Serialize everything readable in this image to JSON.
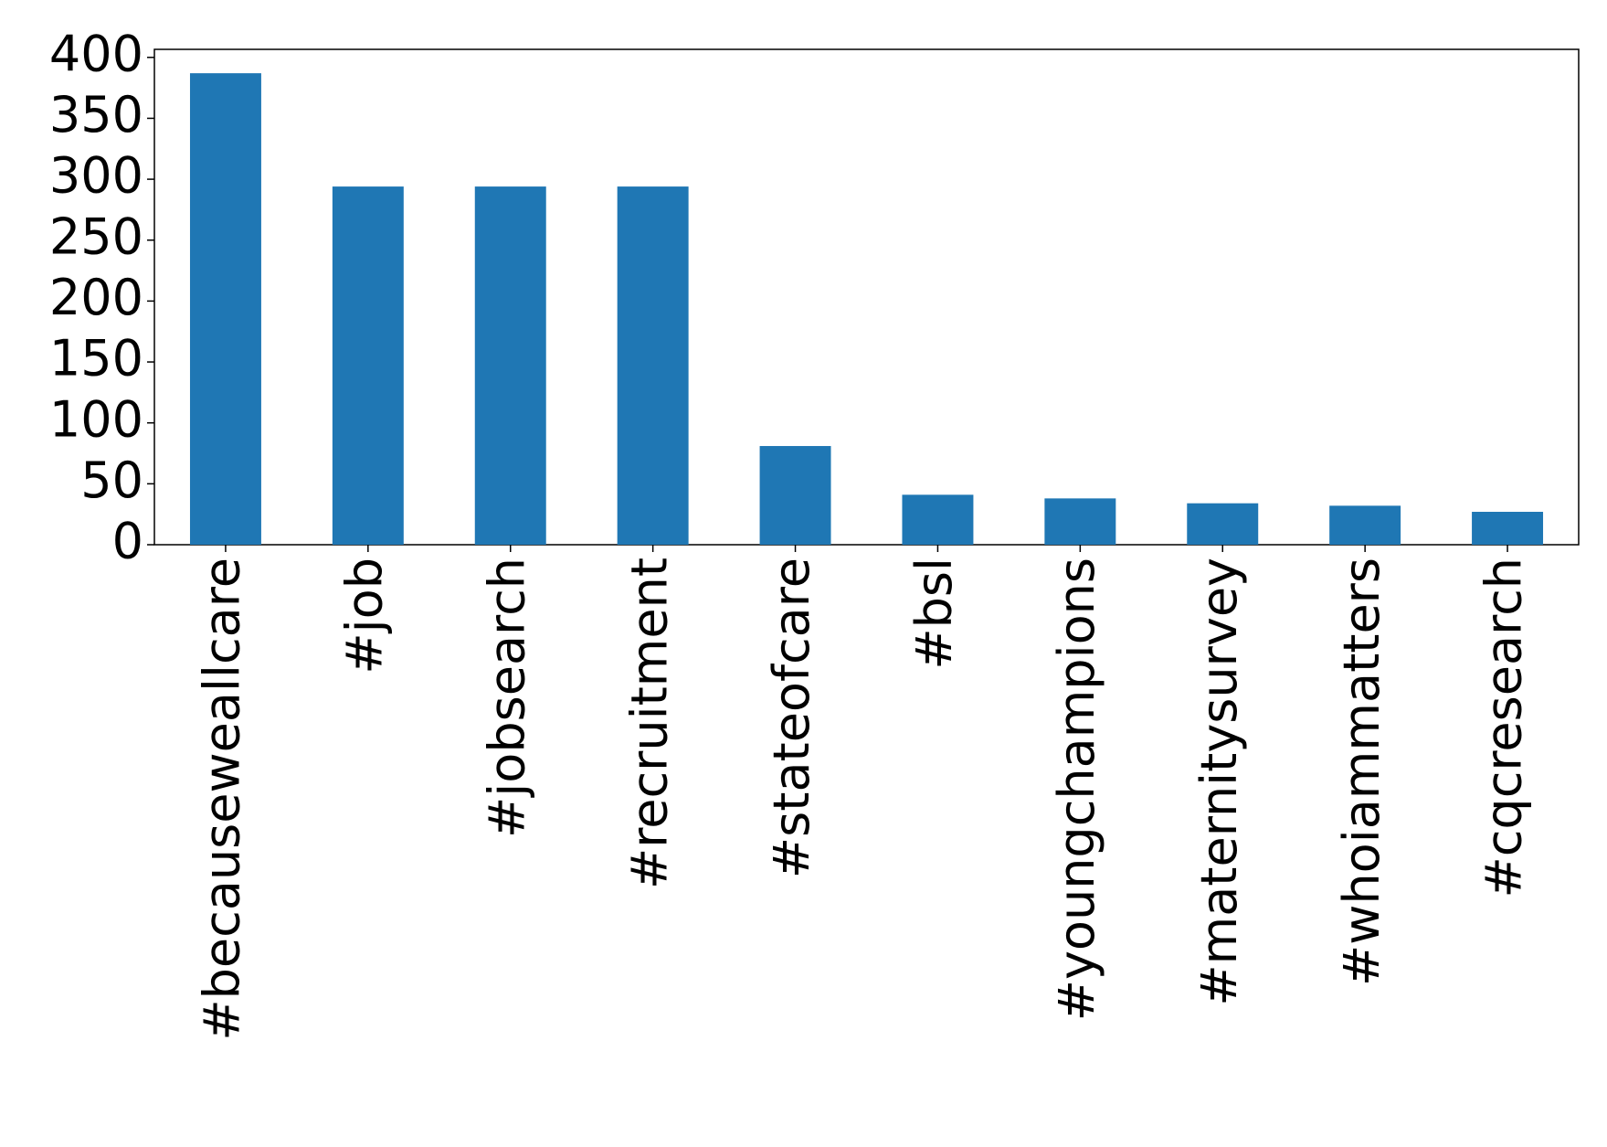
{
  "chart_data": {
    "type": "bar",
    "categories": [
      "#becauseweallcare",
      "#job",
      "#jobsearch",
      "#recruitment",
      "#stateofcare",
      "#bsl",
      "#youngchampions",
      "#maternitysurvey",
      "#whoiammatters",
      "#cqcresearch"
    ],
    "values": [
      387,
      294,
      294,
      294,
      81,
      41,
      38,
      34,
      32,
      27
    ],
    "color": "#1f77b4",
    "ylim": [
      0,
      406.6
    ],
    "yticks": [
      0,
      50,
      100,
      150,
      200,
      250,
      300,
      350,
      400
    ],
    "grid": false
  }
}
